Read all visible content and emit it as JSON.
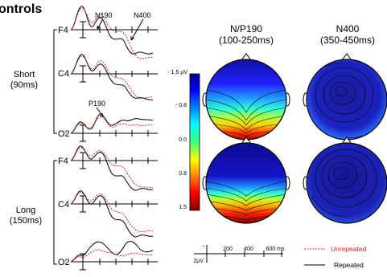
{
  "figure_title": "ontrols",
  "conditions": [
    {
      "label": "Short",
      "duration": "(90ms)"
    },
    {
      "label": "Long",
      "duration": "(150ms)"
    }
  ],
  "electrodes": [
    "F4",
    "C4",
    "O2"
  ],
  "component_labels": {
    "n190": "N190",
    "n400": "N400",
    "p190": "P190"
  },
  "map_headers": [
    {
      "name": "N/P190",
      "window": "(100-250ms)"
    },
    {
      "name": "N400",
      "window": "(350-450ms)"
    }
  ],
  "colorbar": {
    "unit": "- 1.5 µV",
    "ticks": [
      "- 0.8",
      "0.0",
      "0.8",
      "1.5"
    ]
  },
  "scale_bar": {
    "amplitude_tick": "–",
    "amplitude": "2µV",
    "time_ticks": [
      "200",
      "400",
      "600 ms"
    ]
  },
  "legend": [
    {
      "label": "Unrepeated",
      "color": "#d62020",
      "style": "dashed"
    },
    {
      "label": "Repeated",
      "color": "#000000",
      "style": "solid"
    }
  ],
  "colors": {
    "unrepeated": "#d62020",
    "repeated": "#000000",
    "scale_low": "#0000c8",
    "scale_high": "#a00000"
  }
}
